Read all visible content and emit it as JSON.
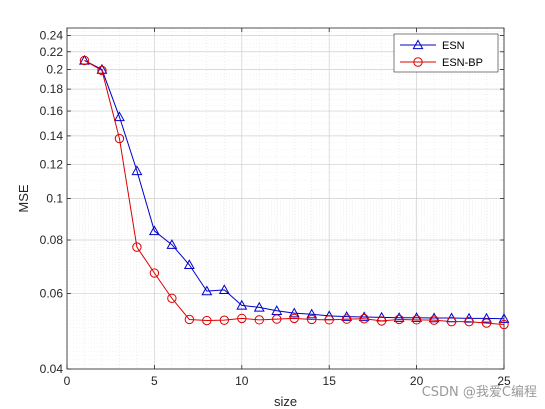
{
  "chart_data": {
    "type": "line",
    "title": "",
    "xlabel": "size",
    "ylabel": "MSE",
    "xlim": [
      0,
      25
    ],
    "ylim": [
      0.04,
      0.25
    ],
    "yscale": "log",
    "grid": true,
    "minor_grid": true,
    "legend_position": "top-right",
    "x_ticks": [
      0,
      5,
      10,
      15,
      20,
      25
    ],
    "x_tick_labels": [
      "0",
      "5",
      "10",
      "15",
      "20",
      "25"
    ],
    "y_ticks": [
      0.04,
      0.06,
      0.08,
      0.1,
      0.12,
      0.14,
      0.16,
      0.18,
      0.2,
      0.22,
      0.24
    ],
    "y_tick_labels": [
      "0.04",
      "0.06",
      "0.08",
      "0.1",
      "0.12",
      "0.14",
      "0.16",
      "0.18",
      "0.2",
      "0.22",
      "0.24"
    ],
    "x": [
      1,
      2,
      3,
      4,
      5,
      6,
      7,
      8,
      9,
      10,
      11,
      12,
      13,
      14,
      15,
      16,
      17,
      18,
      19,
      20,
      21,
      22,
      23,
      24,
      25
    ],
    "series": [
      {
        "name": "ESN",
        "color": "#0000cc",
        "marker": "triangle",
        "values": [
          0.21,
          0.2,
          0.155,
          0.116,
          0.084,
          0.078,
          0.07,
          0.0608,
          0.0612,
          0.0563,
          0.0557,
          0.0547,
          0.054,
          0.0537,
          0.0532,
          0.053,
          0.0529,
          0.0528,
          0.0527,
          0.0527,
          0.0526,
          0.0526,
          0.0525,
          0.0525,
          0.0524
        ]
      },
      {
        "name": "ESN-BP",
        "color": "#dd0000",
        "marker": "circle",
        "values": [
          0.21,
          0.199,
          0.138,
          0.077,
          0.067,
          0.0585,
          0.0522,
          0.0519,
          0.052,
          0.0525,
          0.0521,
          0.0523,
          0.0525,
          0.0522,
          0.0521,
          0.0523,
          0.0524,
          0.0518,
          0.0522,
          0.0521,
          0.052,
          0.0516,
          0.0516,
          0.0512,
          0.0508
        ]
      }
    ]
  },
  "watermark": "CSDN @我爱C编程"
}
